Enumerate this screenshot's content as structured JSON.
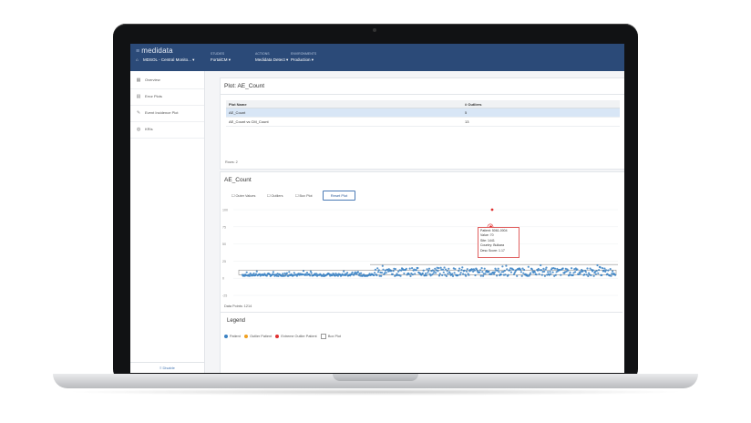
{
  "app": {
    "brand": "medidata",
    "brand_glyph": "≡"
  },
  "nav": {
    "study_value": "MDSOL - Central Monito...",
    "studies_label": "STUDIES",
    "studies_value": "FortalCM",
    "actions_label": "ACTIONS",
    "actions_value": "Medidata Detect",
    "environments_label": "ENVIRONMENTS",
    "environments_value": "Production"
  },
  "sidebar": {
    "items": [
      {
        "label": "Overview",
        "icon": "dashboard-icon"
      },
      {
        "label": "Error Plots",
        "icon": "chart-icon"
      },
      {
        "label": "Event Incidence Plot",
        "icon": "edit-icon"
      },
      {
        "label": "KRIs",
        "icon": "globe-icon"
      }
    ],
    "footer": "≡ Disable"
  },
  "plot_panel": {
    "title": "Plot: AE_Count",
    "columns": [
      "Plot Name",
      "# Outliers"
    ],
    "rows": [
      {
        "name": "AE_Count",
        "outliers": "5",
        "selected": true
      },
      {
        "name": "AE_Count vs CM_Count",
        "outliers": "13",
        "selected": false
      }
    ],
    "footer": "Rows: 2"
  },
  "chart_panel": {
    "title": "AE_Count",
    "options": [
      "Outer Values",
      "Outliers",
      "Box Plot"
    ],
    "reset_label": "Reset Plot",
    "data_points": "Data Points: 1214",
    "legend_title": "Legend",
    "legend": [
      {
        "label": "Patient",
        "color": "#3b82c4"
      },
      {
        "label": "Outlier Patient",
        "color": "#f0a020"
      },
      {
        "label": "Extreme Outlier Patient",
        "color": "#e03030"
      },
      {
        "label": "Box Plot",
        "color": "box"
      }
    ],
    "tooltip": {
      "patient": "Patient: 5061-0004",
      "value": "Value: 70",
      "site": "Site: 1441",
      "country": "Country: Bulkara",
      "desc": "Desc Score: 1.17"
    }
  },
  "chart_data": {
    "type": "scatter",
    "y_ticks": [
      "100",
      "75",
      "50",
      "25",
      "0",
      "-25"
    ],
    "ylim": [
      -25,
      100
    ],
    "series": [
      {
        "name": "Patient",
        "color": "#3b82c4",
        "count": 1214
      },
      {
        "name": "Extreme Outlier Patient",
        "color": "#e03030",
        "y": [
          70,
          75,
          100
        ]
      }
    ]
  }
}
